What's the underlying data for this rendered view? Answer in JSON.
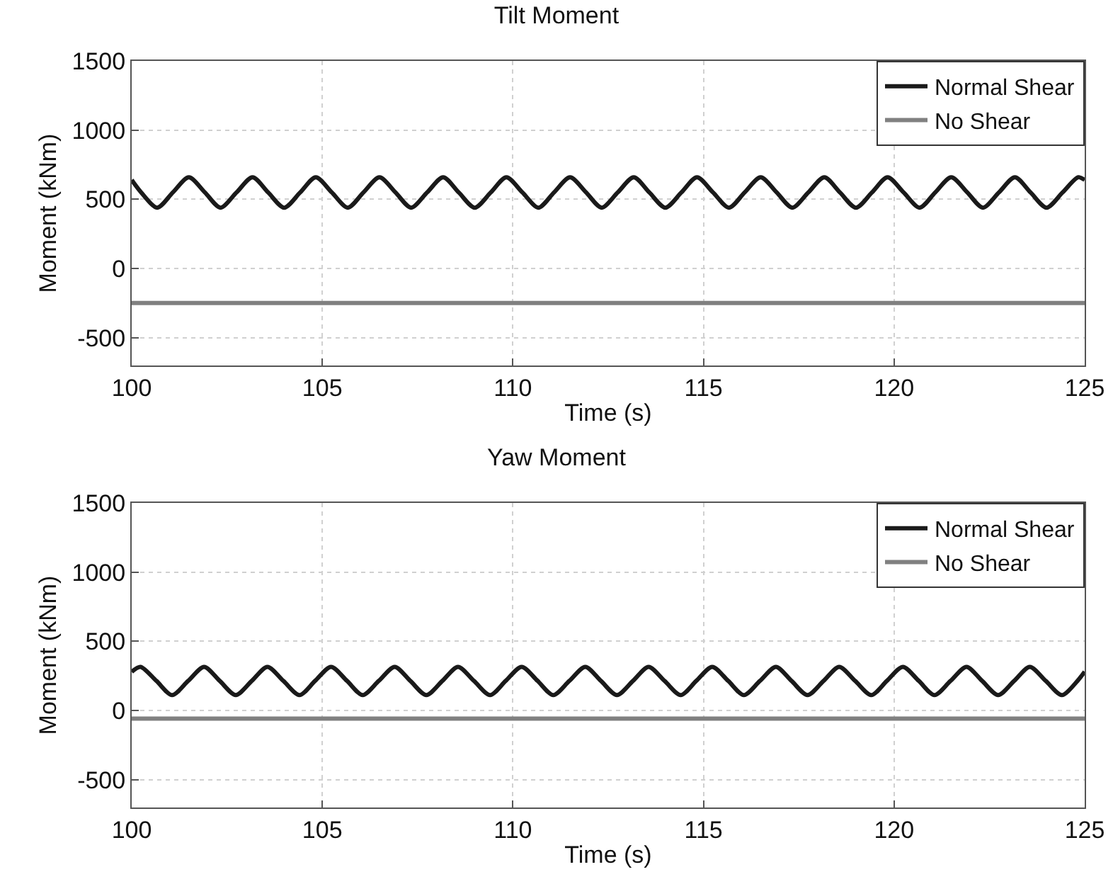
{
  "chart_data": [
    {
      "type": "line",
      "title": "Tilt Moment",
      "xlabel": "Time (s)",
      "ylabel": "Moment (kNm)",
      "xlim": [
        100,
        125
      ],
      "xticks": [
        100,
        105,
        110,
        115,
        120,
        125
      ],
      "ylim": [
        -700,
        1500
      ],
      "yticks": [
        -500,
        0,
        500,
        1000,
        1500
      ],
      "grid": true,
      "legend": "top right",
      "line_style": "solid",
      "series": [
        {
          "name": "Normal Shear",
          "color": "#1a1a1a",
          "x": [
            100,
            100.25,
            100.67,
            101.08,
            101.5,
            101.92,
            102.33,
            102.75,
            103.17,
            103.58,
            104,
            104.42,
            104.83,
            105.25,
            105.67,
            106.08,
            106.5,
            106.92,
            107.33,
            107.75,
            108.17,
            108.58,
            109,
            109.42,
            109.83,
            110.25,
            110.67,
            111.08,
            111.5,
            111.92,
            112.33,
            112.75,
            113.17,
            113.58,
            114,
            114.42,
            114.83,
            115.25,
            115.67,
            116.08,
            116.5,
            116.92,
            117.33,
            117.75,
            118.17,
            118.58,
            119,
            119.42,
            119.83,
            120.25,
            120.67,
            121.08,
            121.5,
            121.92,
            122.33,
            122.75,
            123.17,
            123.58,
            124,
            124.42,
            124.83,
            125
          ],
          "values": [
            640,
            550,
            440,
            550,
            660,
            550,
            440,
            550,
            660,
            550,
            440,
            550,
            660,
            550,
            440,
            550,
            660,
            550,
            440,
            550,
            660,
            550,
            440,
            550,
            660,
            550,
            440,
            550,
            660,
            550,
            440,
            550,
            660,
            550,
            440,
            550,
            660,
            550,
            440,
            550,
            660,
            550,
            440,
            550,
            660,
            550,
            440,
            550,
            660,
            550,
            440,
            550,
            660,
            550,
            440,
            550,
            660,
            550,
            440,
            550,
            660,
            640
          ]
        },
        {
          "name": "No Shear",
          "color": "#808080",
          "x": [
            100,
            105,
            110,
            115,
            120,
            125
          ],
          "values": [
            -248,
            -248,
            -248,
            -248,
            -248,
            -248
          ]
        }
      ]
    },
    {
      "type": "line",
      "title": "Yaw Moment",
      "xlabel": "Time (s)",
      "ylabel": "Moment (kNm)",
      "xlim": [
        100,
        125
      ],
      "xticks": [
        100,
        105,
        110,
        115,
        120,
        125
      ],
      "ylim": [
        -700,
        1500
      ],
      "yticks": [
        -500,
        0,
        500,
        1000,
        1500
      ],
      "grid": true,
      "legend": "top right",
      "line_style": "solid",
      "series": [
        {
          "name": "Normal Shear",
          "color": "#1a1a1a",
          "x": [
            100,
            100.23,
            100.65,
            101.06,
            101.48,
            101.9,
            102.31,
            102.73,
            103.15,
            103.56,
            103.98,
            104.4,
            104.81,
            105.23,
            105.65,
            106.06,
            106.48,
            106.9,
            107.31,
            107.73,
            108.15,
            108.56,
            108.98,
            109.4,
            109.81,
            110.23,
            110.65,
            111.06,
            111.48,
            111.9,
            112.31,
            112.73,
            113.15,
            113.56,
            113.98,
            114.4,
            114.81,
            115.23,
            115.65,
            116.06,
            116.48,
            116.9,
            117.31,
            117.73,
            118.15,
            118.56,
            118.98,
            119.4,
            119.81,
            120.23,
            120.65,
            121.06,
            121.48,
            121.9,
            122.31,
            122.73,
            123.15,
            123.56,
            123.98,
            124.4,
            124.81,
            125
          ],
          "values": [
            280,
            316,
            214,
            112,
            214,
            316,
            214,
            112,
            214,
            316,
            214,
            112,
            214,
            316,
            214,
            112,
            214,
            316,
            214,
            112,
            214,
            316,
            214,
            112,
            214,
            316,
            214,
            112,
            214,
            316,
            214,
            112,
            214,
            316,
            214,
            112,
            214,
            316,
            214,
            112,
            214,
            316,
            214,
            112,
            214,
            316,
            214,
            112,
            214,
            316,
            214,
            112,
            214,
            316,
            214,
            112,
            214,
            316,
            214,
            112,
            214,
            281
          ]
        },
        {
          "name": "No Shear",
          "color": "#808080",
          "x": [
            100,
            105,
            110,
            115,
            120,
            125
          ],
          "values": [
            -58,
            -58,
            -58,
            -58,
            -58,
            -58
          ]
        }
      ]
    }
  ]
}
